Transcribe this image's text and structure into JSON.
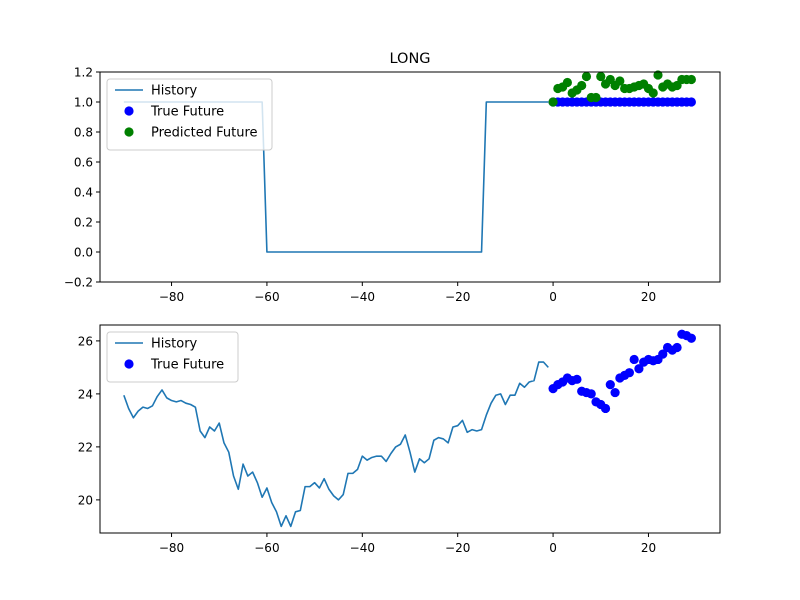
{
  "chart_data": [
    {
      "type": "line",
      "title": "LONG",
      "xlabel": "",
      "ylabel": "",
      "xlim": [
        -95,
        35
      ],
      "ylim": [
        -0.2,
        1.2
      ],
      "xticks": [
        -80,
        -60,
        -40,
        -20,
        0,
        20
      ],
      "yticks": [
        -0.2,
        0.0,
        0.2,
        0.4,
        0.6,
        0.8,
        1.0,
        1.2
      ],
      "xtick_labels": [
        "−80",
        "−60",
        "−40",
        "−20",
        "0",
        "20"
      ],
      "ytick_labels": [
        "−0.2",
        "0.0",
        "0.2",
        "0.4",
        "0.6",
        "0.8",
        "1.0",
        "1.2"
      ],
      "grid": false,
      "legend_position": "upper-left",
      "series": [
        {
          "name": "History",
          "kind": "line",
          "color": "#1f77b4",
          "x": [
            -90,
            -61,
            -60,
            -15,
            -14,
            -1
          ],
          "y": [
            1.0,
            1.0,
            0.0,
            0.0,
            1.0,
            1.0
          ]
        },
        {
          "name": "True Future",
          "kind": "scatter",
          "color": "#0000ff",
          "x": [
            0,
            1,
            2,
            3,
            4,
            5,
            6,
            7,
            8,
            9,
            10,
            11,
            12,
            13,
            14,
            15,
            16,
            17,
            18,
            19,
            20,
            21,
            22,
            23,
            24,
            25,
            26,
            27,
            28,
            29
          ],
          "y": [
            1,
            1,
            1,
            1,
            1,
            1,
            1,
            1,
            1,
            1,
            1,
            1,
            1,
            1,
            1,
            1,
            1,
            1,
            1,
            1,
            1,
            1,
            1,
            1,
            1,
            1,
            1,
            1,
            1,
            1
          ]
        },
        {
          "name": "Predicted Future",
          "kind": "scatter",
          "color": "#008000",
          "x": [
            0,
            1,
            2,
            3,
            4,
            5,
            6,
            7,
            8,
            9,
            10,
            11,
            12,
            13,
            14,
            15,
            16,
            17,
            18,
            19,
            20,
            21,
            22,
            23,
            24,
            25,
            26,
            27,
            28,
            29
          ],
          "y": [
            1.0,
            1.09,
            1.1,
            1.13,
            1.06,
            1.08,
            1.11,
            1.17,
            1.03,
            1.03,
            1.17,
            1.12,
            1.15,
            1.11,
            1.14,
            1.09,
            1.09,
            1.1,
            1.11,
            1.12,
            1.09,
            1.06,
            1.18,
            1.1,
            1.12,
            1.1,
            1.11,
            1.15,
            1.15,
            1.15
          ]
        }
      ]
    },
    {
      "type": "line",
      "title": "",
      "xlabel": "",
      "ylabel": "",
      "xlim": [
        -95,
        35
      ],
      "ylim": [
        18.75,
        26.6
      ],
      "xticks": [
        -80,
        -60,
        -40,
        -20,
        0,
        20
      ],
      "yticks": [
        20,
        22,
        24,
        26
      ],
      "xtick_labels": [
        "−80",
        "−60",
        "−40",
        "−20",
        "0",
        "20"
      ],
      "ytick_labels": [
        "20",
        "22",
        "24",
        "26"
      ],
      "grid": false,
      "legend_position": "upper-left",
      "series": [
        {
          "name": "History",
          "kind": "line",
          "color": "#1f77b4",
          "x": [
            -90,
            -89,
            -88,
            -87,
            -86,
            -85,
            -84,
            -83,
            -82,
            -81,
            -80,
            -79,
            -78,
            -77,
            -76,
            -75,
            -74,
            -73,
            -72,
            -71,
            -70,
            -69,
            -68,
            -67,
            -66,
            -65,
            -64,
            -63,
            -62,
            -61,
            -60,
            -59,
            -58,
            -57,
            -56,
            -55,
            -54,
            -53,
            -52,
            -51,
            -50,
            -49,
            -48,
            -47,
            -46,
            -45,
            -44,
            -43,
            -42,
            -41,
            -40,
            -39,
            -38,
            -37,
            -36,
            -35,
            -34,
            -33,
            -32,
            -31,
            -30,
            -29,
            -28,
            -27,
            -26,
            -25,
            -24,
            -23,
            -22,
            -21,
            -20,
            -19,
            -18,
            -17,
            -16,
            -15,
            -14,
            -13,
            -12,
            -11,
            -10,
            -9,
            -8,
            -7,
            -6,
            -5,
            -4,
            -3,
            -2,
            -1
          ],
          "y": [
            23.95,
            23.45,
            23.1,
            23.35,
            23.5,
            23.45,
            23.55,
            23.9,
            24.15,
            23.85,
            23.75,
            23.7,
            23.75,
            23.65,
            23.6,
            23.5,
            22.6,
            22.35,
            22.75,
            22.6,
            22.9,
            22.15,
            21.8,
            20.9,
            20.4,
            21.35,
            20.9,
            21.05,
            20.65,
            20.1,
            20.45,
            19.9,
            19.55,
            19.0,
            19.4,
            19.0,
            19.55,
            19.6,
            20.5,
            20.5,
            20.65,
            20.45,
            20.8,
            20.4,
            20.15,
            20.0,
            20.2,
            21.0,
            21.0,
            21.15,
            21.65,
            21.5,
            21.6,
            21.65,
            21.65,
            21.45,
            21.75,
            22.0,
            22.1,
            22.45,
            21.8,
            21.05,
            21.55,
            21.4,
            21.55,
            22.25,
            22.35,
            22.3,
            22.15,
            22.75,
            22.8,
            23.0,
            22.55,
            22.65,
            22.6,
            22.65,
            23.2,
            23.65,
            23.95,
            24.0,
            23.6,
            23.95,
            23.95,
            24.4,
            24.25,
            24.45,
            24.5,
            25.2,
            25.2,
            25.0
          ]
        },
        {
          "name": "True Future",
          "kind": "scatter",
          "color": "#0000ff",
          "x": [
            0,
            1,
            2,
            3,
            4,
            5,
            6,
            7,
            8,
            9,
            10,
            11,
            12,
            13,
            14,
            15,
            16,
            17,
            18,
            19,
            20,
            21,
            22,
            23,
            24,
            25,
            26,
            27,
            28,
            29
          ],
          "y": [
            24.2,
            24.35,
            24.45,
            24.6,
            24.5,
            24.55,
            24.1,
            24.05,
            24.0,
            23.7,
            23.6,
            23.45,
            24.35,
            24.05,
            24.6,
            24.7,
            24.8,
            25.3,
            24.95,
            25.2,
            25.3,
            25.25,
            25.3,
            25.5,
            25.75,
            25.65,
            25.75,
            26.25,
            26.2,
            26.1
          ]
        }
      ]
    }
  ]
}
